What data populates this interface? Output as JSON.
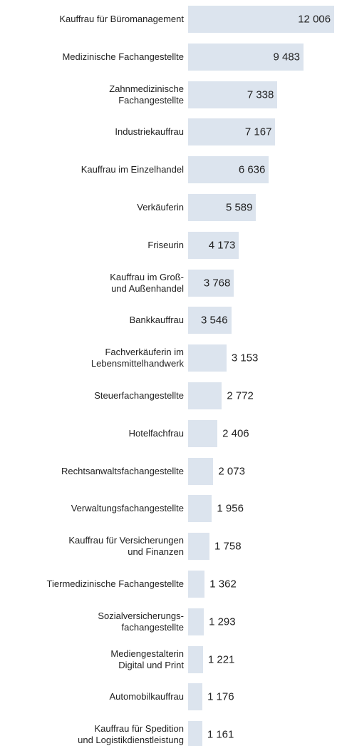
{
  "chart_data": {
    "type": "bar",
    "orientation": "horizontal",
    "categories": [
      "Kauffrau für Büromanagement",
      "Medizinische Fachangestellte",
      "Zahnmedizinische\nFachangestellte",
      "Industriekauffrau",
      "Kauffrau im Einzelhandel",
      "Verkäuferin",
      "Friseurin",
      "Kauffrau im Groß-\nund Außenhandel",
      "Bankkauffrau",
      "Fachverkäuferin im\nLebensmittelhandwerk",
      "Steuerfachangestellte",
      "Hotelfachfrau",
      "Rechtsanwaltsfachangestellte",
      "Verwaltungsfachangestellte",
      "Kauffrau für Versicherungen\nund Finanzen",
      "Tiermedizinische Fachangestellte",
      "Sozialversicherungs-\nfachangestellte",
      "Mediengestalterin\nDigital und Print",
      "Automobilkauffrau",
      "Kauffrau für Spedition\nund Logistikdienstleistung"
    ],
    "values": [
      12006,
      9483,
      7338,
      7167,
      6636,
      5589,
      4173,
      3768,
      3546,
      3153,
      2772,
      2406,
      2073,
      1956,
      1758,
      1362,
      1293,
      1221,
      1176,
      1161
    ],
    "value_labels": [
      "12 006",
      "9 483",
      "7 338",
      "7 167",
      "6 636",
      "5 589",
      "4 173",
      "3 768",
      "3 546",
      "3 153",
      "2 772",
      "2 406",
      "2 073",
      "1 956",
      "1 758",
      "1 362",
      "1 293",
      "1 221",
      "1 176",
      "1 161"
    ],
    "color": "#dce4ee",
    "xlim": [
      0,
      12000
    ]
  }
}
